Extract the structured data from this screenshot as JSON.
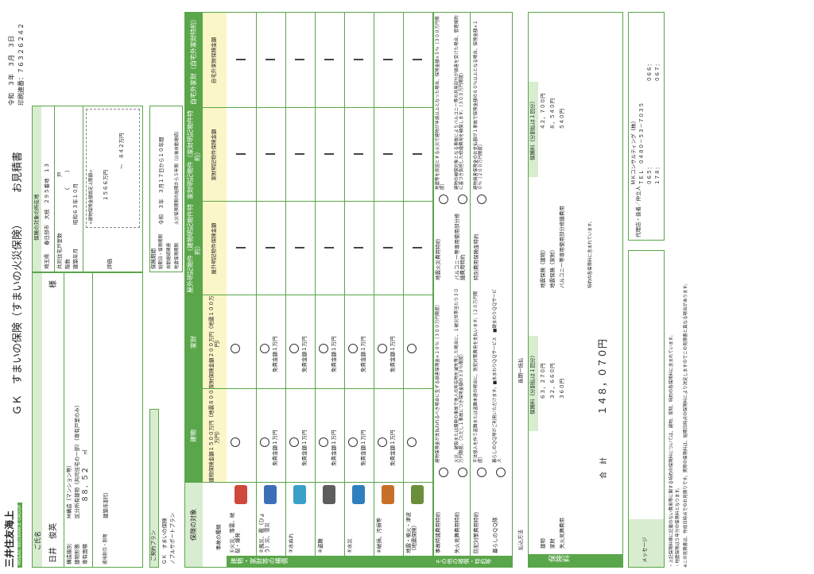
{
  "header": {
    "company": "三井住友海上",
    "company_sub": "MS&AD INSURANCE GROUP",
    "title_product": "ＧＫ　すまいの保険（すまいの火災保険）",
    "title_doc": "お見積書",
    "date": "令和　３年　３月　３日",
    "print_no_label": "印刷連番：",
    "print_no": "７６３２６２４２"
  },
  "customer": {
    "name_label": "ご氏名",
    "name_value": "日井　俊英",
    "name_suffix": "様",
    "structure_label": "構造級別",
    "structure_value": "M構造（マンション等）",
    "type_label": "建物形態",
    "type_value": "区分所有建物（共同住宅の一部）（専有戸室のみ）",
    "area_label": "専有面積",
    "area_value": "８８．５２",
    "area_unit": "㎡",
    "discount_label": "適用割引・割増",
    "discount_value": "建築年割引"
  },
  "location": {
    "header": "保険の対象の所在地",
    "address_label": "埼玉県",
    "address_value": "春日部市　大枝　２９５番地　１３",
    "units_label": "共同住宅戸室数",
    "units_value": "戸",
    "floors_label": "階数",
    "floors_value": "（　　　）",
    "built_label": "建築年月",
    "built_value": "昭和６３年１０月",
    "eval_label": "評価",
    "eval_note": "<建物保険金額設定上限額>",
    "eval_low": "１５６６万円",
    "eval_high": "～　８４２万円"
  },
  "plan": {
    "label": "ご契約プラン",
    "value": "ＧＫ　すまいの保険",
    "value2": "ノブルサポートプラン"
  },
  "period": {
    "header": "保険期間",
    "row1_label": "始期日・保険期間",
    "row1_value": "令和　３年　３月１７日から１０年間",
    "row2_label": "自動継続関連",
    "row3_label": "地震保険期間",
    "row3_value": "火災保険期間の始期から５年間（以後自動継続）"
  },
  "table": {
    "col_target": "保険の対象",
    "col_building": "建物",
    "col_contents": "家財",
    "col_outdoor_b": "屋外明記物件（建物明記物件特約）",
    "col_outdoor_c": "家財明記物件（家財明記物件特約）",
    "col_outside": "自宅外家財（自宅外家財特約）",
    "sub_building": "建物保険金額１５００万円（地震８００万円）",
    "sub_contents": "家財保険金額２００万円（地震１００万円）",
    "sub_outdoor_b": "屋外明記物件保険金額",
    "sub_outdoor_c": "家財明記物件保険金額",
    "sub_outside": "自宅外家財保険金額",
    "types_header": "事故の種類",
    "section_label": "建物・家財等の補償",
    "rows": [
      {
        "label": "①火災、落雷、破裂・爆発",
        "building": "",
        "contents": ""
      },
      {
        "label": "②風災、雹（ひょう）災、雪災",
        "building": "免責金額１万円",
        "contents": "免責金額１万円"
      },
      {
        "label": "③水ぬれ",
        "building": "免責金額１万円",
        "contents": "免責金額１万円"
      },
      {
        "label": "④盗難",
        "building": "免責金額１万円",
        "contents": "免責金額１万円"
      },
      {
        "label": "⑤水災",
        "building": "免責金額１万円",
        "contents": "免責金額１万円"
      },
      {
        "label": "⑥破損、汚損等",
        "building": "免責金額１万円",
        "contents": "免責金額１万円"
      },
      {
        "label": "地震・噴火・津波（地震保険）",
        "building": "",
        "contents": ""
      }
    ]
  },
  "riders": {
    "section_label": "その他の補償・特約等",
    "items": [
      {
        "name": "事故時諸費用特約",
        "desc": "建物保険金が支払われるべき場合に生ずる損害保険金×１０％（３００万円限度）"
      },
      {
        "name": "失火見舞費用特約",
        "desc": "火災、破裂または爆発の事故で他人の所有物を滅失等した場合に、１被災世帯当たり３０万円限度。（ただし１事故につき保険金額の３０％限度）"
      },
      {
        "name": "防犯対策費用特約",
        "desc": "不法侵入を伴う盗難または盗難未遂の場合に、防犯対策費用を支払います。（２０万円限度）"
      },
      {
        "name": "暮らしのＱＱ隊",
        "desc": "暮らしのＱＱ隊がご利用いただけます。■水まわりＱＱサービス　■鍵まわりＱＱサービス"
      },
      {
        "name": "地震火災費用特約",
        "desc": "地震等を原因とする火災で建物が半焼以上となった場合、保険金額×５％（３００万円限度）"
      },
      {
        "name": "バルコニー等専用使用部分修繕費用特約",
        "desc": "建物の補償対象となる事故によりバルコニー等の共用部分が損害を受けた場合、管理規約に基づき負担した修繕費用を補償します。（３００万円限度）"
      },
      {
        "name": "特別費用保険金特約",
        "desc": "建物損害保険金のお支払額が１事故で保険金額の８０％以上となる場合、保険金額×１０％（２００万円限度）"
      }
    ]
  },
  "premium": {
    "pay_label": "払込方法",
    "pay_value": "長期一括払",
    "section_label": "保険料",
    "col_header": "保険料（分割払は１回分）",
    "rows": [
      {
        "label": "建物",
        "value": "６３，２７０円"
      },
      {
        "label": "家財",
        "value": "３２，６６０円"
      },
      {
        "label": "失火見舞費用",
        "value": "３６０円"
      }
    ],
    "rows2": [
      {
        "label": "地震保険（建物）",
        "value": "４２，７００円"
      },
      {
        "label": "地震保険（家財）",
        "value": "８，５４０円"
      },
      {
        "label": "バルコニー等専用使用部分修繕費用",
        "value": "５４０円"
      }
    ],
    "total_label": "合　計",
    "total_value": "１４８，０７０円",
    "note": "特約の各保険料に含まれています。"
  },
  "agent": {
    "label": "代理店・扱者／仲立人",
    "name": "ＭＫコンサルティング（株）",
    "tel": "ＴＥＬ　０４８０－５３－７０３５",
    "code1": "０６５：",
    "code2": "１７８：",
    "code3": "０６６：",
    "code4": "０６７："
  },
  "message_label": "メッセージ",
  "footnotes": [
    "・上記保険料欄に記載のない費用等に関する特約の保険料については、建物、家財、特約の各保険料に含まれています。",
    "・地震保険は５年分の保険料となります。",
    "※この見積書は、作成日時点でのお見積りです。実際の保険料は、始期日時点の保険料により決定しますのでこの見積書と異なる場合があります。"
  ]
}
